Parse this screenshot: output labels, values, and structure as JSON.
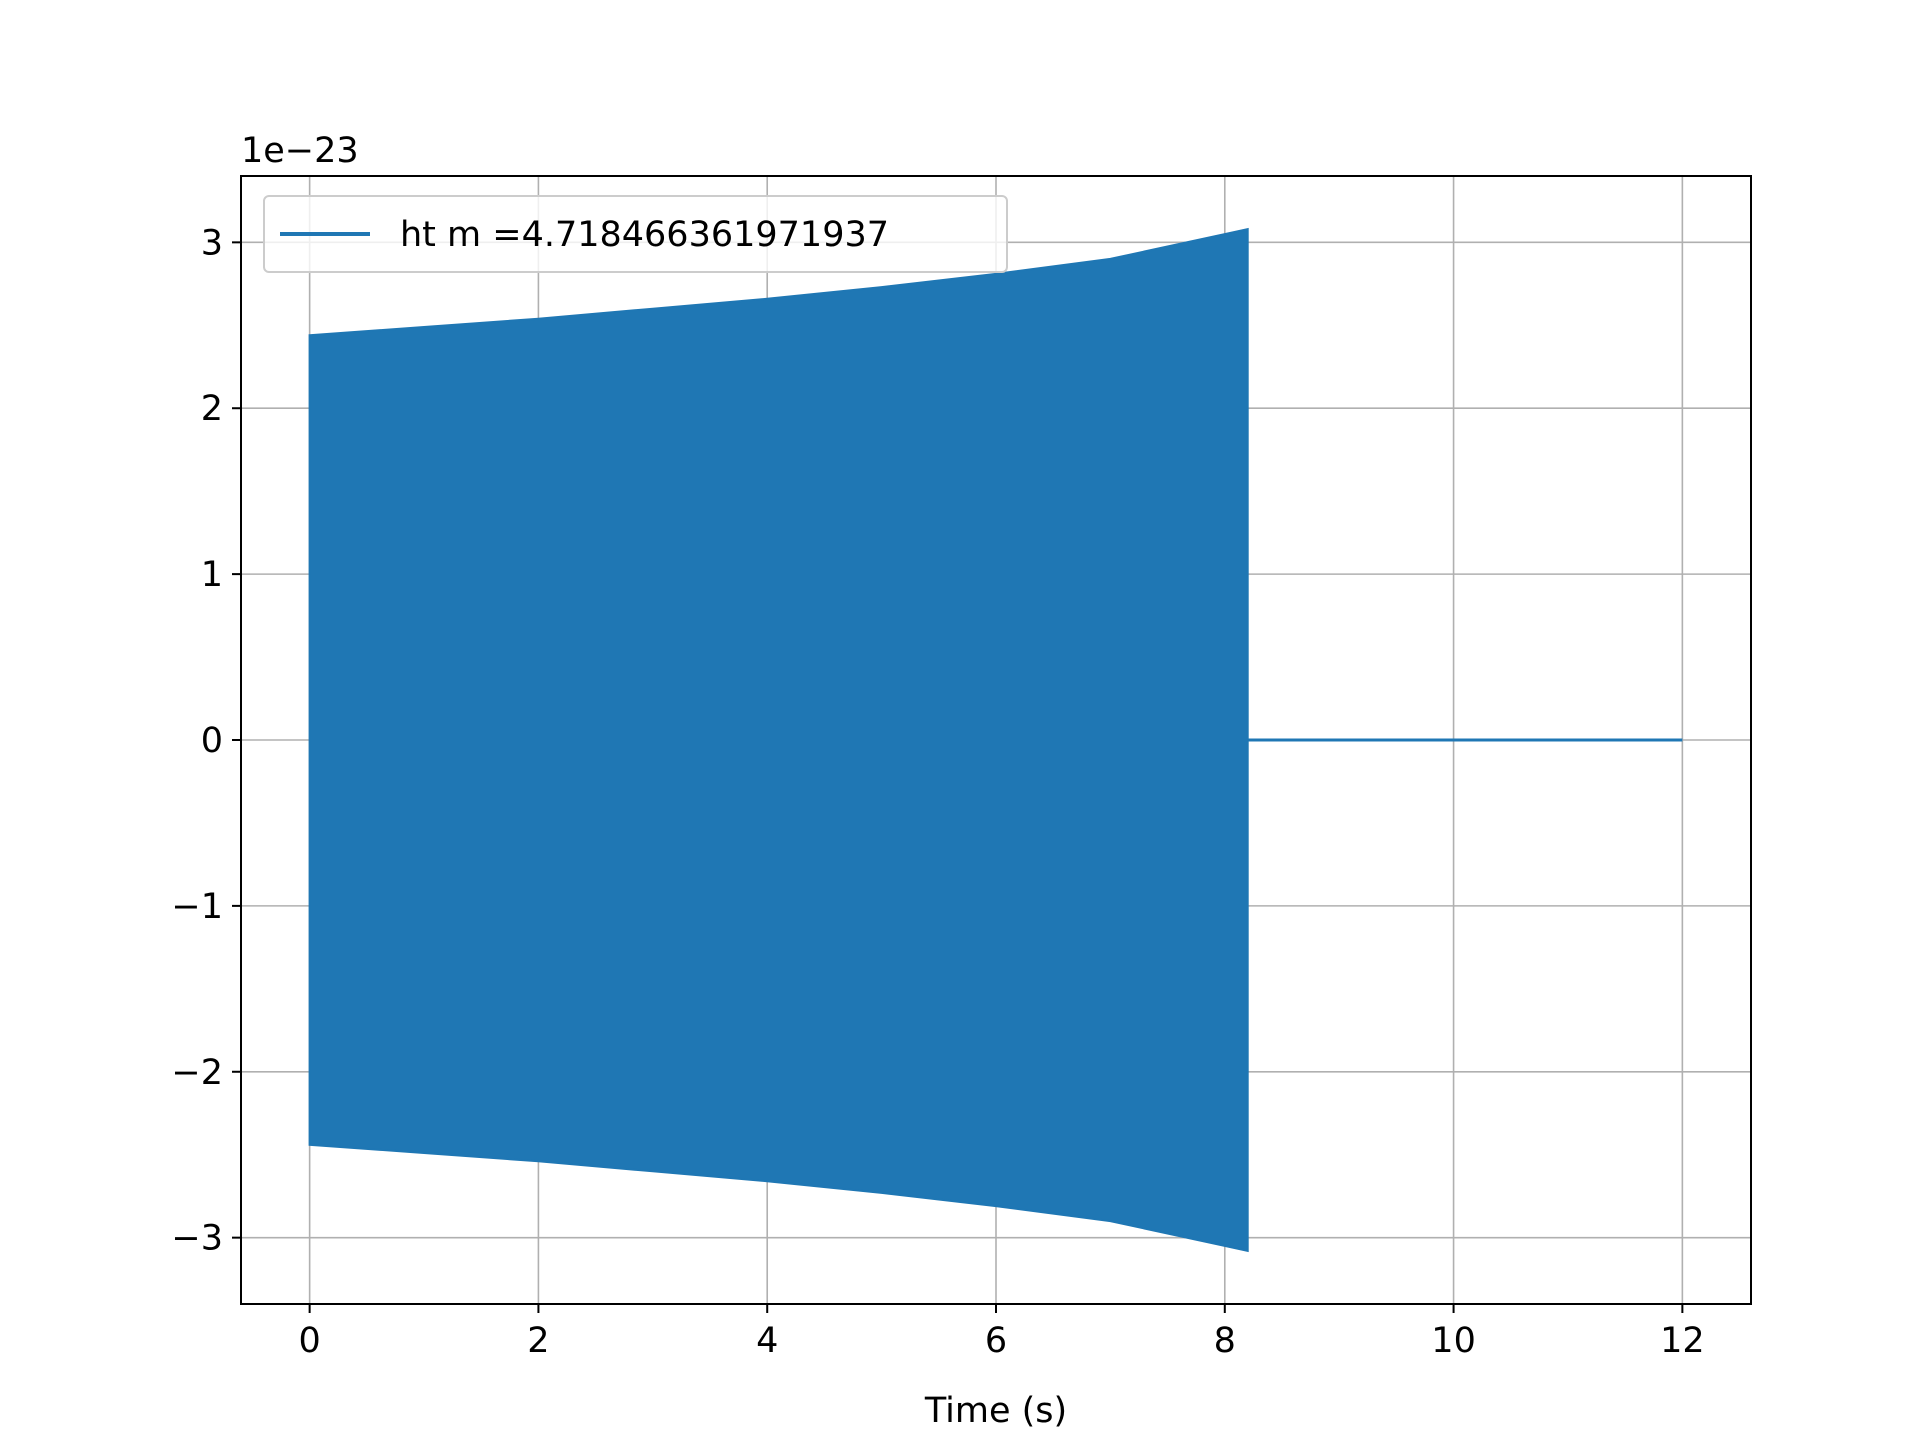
{
  "chart_data": {
    "type": "line",
    "title": "",
    "xlabel": "Time (s)",
    "ylabel": "",
    "y_offset_label": "1e−23",
    "xlim": [
      -0.6,
      12.6
    ],
    "ylim": [
      -3.4,
      3.4
    ],
    "x_ticks": [
      0,
      2,
      4,
      6,
      8,
      10,
      12
    ],
    "x_tick_labels": [
      "0",
      "2",
      "4",
      "6",
      "8",
      "10",
      "12"
    ],
    "y_ticks": [
      -3,
      -2,
      -1,
      0,
      1,
      2,
      3
    ],
    "y_tick_labels": [
      "−3",
      "−2",
      "−1",
      "0",
      "1",
      "2",
      "3"
    ],
    "grid": true,
    "legend_position": "top-left",
    "series": [
      {
        "name": "ht m =4.718466361971937",
        "color": "#1f77b4",
        "style": "oscillating-envelope",
        "envelope": {
          "t": [
            0,
            1,
            2,
            3,
            4,
            5,
            6,
            7,
            8,
            8.2
          ],
          "amplitude": [
            2.44,
            2.49,
            2.54,
            2.6,
            2.66,
            2.73,
            2.81,
            2.9,
            3.05,
            3.08
          ]
        },
        "tail": {
          "x": [
            8.2,
            12.0
          ],
          "y": [
            0,
            0
          ]
        }
      }
    ]
  }
}
